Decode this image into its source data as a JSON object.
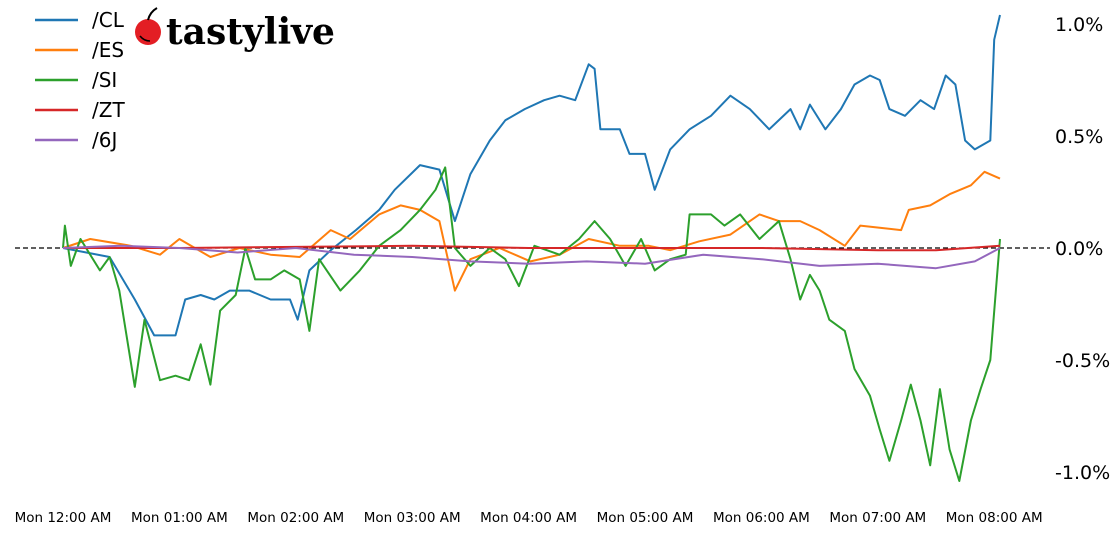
{
  "logo": {
    "text": "tastylive",
    "cherry_color": "#e31e24"
  },
  "chart_data": {
    "type": "line",
    "title": "",
    "xlabel": "",
    "ylabel": "",
    "ylim": [
      -1.1,
      1.05
    ],
    "xlim": [
      "00:00",
      "08:20"
    ],
    "grid": false,
    "legend_position": "top-left",
    "reference_line": {
      "y": 0.0,
      "style": "dashed",
      "color": "#000000"
    },
    "y_axis_side": "right",
    "yticks": [
      {
        "value": 1.0,
        "label": "1.0%"
      },
      {
        "value": 0.5,
        "label": "0.5%"
      },
      {
        "value": 0.0,
        "label": "0.0%"
      },
      {
        "value": -0.5,
        "label": "-0.5%"
      },
      {
        "value": -1.0,
        "label": "-1.0%"
      }
    ],
    "xticks": [
      {
        "time": "00:00",
        "label": "Mon 12:00 AM"
      },
      {
        "time": "01:00",
        "label": "Mon 01:00 AM"
      },
      {
        "time": "02:00",
        "label": "Mon 02:00 AM"
      },
      {
        "time": "03:00",
        "label": "Mon 03:00 AM"
      },
      {
        "time": "04:00",
        "label": "Mon 04:00 AM"
      },
      {
        "time": "05:00",
        "label": "Mon 05:00 AM"
      },
      {
        "time": "06:00",
        "label": "Mon 06:00 AM"
      },
      {
        "time": "07:00",
        "label": "Mon 07:00 AM"
      },
      {
        "time": "08:00",
        "label": "Mon 08:00 AM"
      }
    ],
    "series": [
      {
        "name": "/CL",
        "color": "#1f77b4",
        "points": [
          [
            "00:00",
            0
          ],
          [
            "00:24",
            -0.04
          ],
          [
            "00:37",
            -0.23
          ],
          [
            "00:47",
            -0.39
          ],
          [
            "00:58",
            -0.39
          ],
          [
            "01:03",
            -0.23
          ],
          [
            "01:11",
            -0.21
          ],
          [
            "01:18",
            -0.23
          ],
          [
            "01:26",
            -0.19
          ],
          [
            "01:36",
            -0.19
          ],
          [
            "01:47",
            -0.23
          ],
          [
            "01:57",
            -0.23
          ],
          [
            "02:01",
            -0.32
          ],
          [
            "02:07",
            -0.1
          ],
          [
            "02:18",
            -0.01
          ],
          [
            "02:31",
            0.08
          ],
          [
            "02:43",
            0.17
          ],
          [
            "02:51",
            0.26
          ],
          [
            "03:04",
            0.37
          ],
          [
            "03:14",
            0.35
          ],
          [
            "03:22",
            0.12
          ],
          [
            "03:30",
            0.33
          ],
          [
            "03:40",
            0.48
          ],
          [
            "03:48",
            0.57
          ],
          [
            "03:58",
            0.62
          ],
          [
            "04:08",
            0.66
          ],
          [
            "04:16",
            0.68
          ],
          [
            "04:24",
            0.66
          ],
          [
            "04:31",
            0.82
          ],
          [
            "04:34",
            0.8
          ],
          [
            "04:37",
            0.53
          ],
          [
            "04:47",
            0.53
          ],
          [
            "04:52",
            0.42
          ],
          [
            "05:00",
            0.42
          ],
          [
            "05:05",
            0.26
          ],
          [
            "05:13",
            0.44
          ],
          [
            "05:23",
            0.53
          ],
          [
            "05:34",
            0.59
          ],
          [
            "05:44",
            0.68
          ],
          [
            "05:54",
            0.62
          ],
          [
            "06:04",
            0.53
          ],
          [
            "06:15",
            0.62
          ],
          [
            "06:20",
            0.53
          ],
          [
            "06:25",
            0.64
          ],
          [
            "06:33",
            0.53
          ],
          [
            "06:41",
            0.62
          ],
          [
            "06:48",
            0.73
          ],
          [
            "06:56",
            0.77
          ],
          [
            "07:01",
            0.75
          ],
          [
            "07:06",
            0.62
          ],
          [
            "07:14",
            0.59
          ],
          [
            "07:22",
            0.66
          ],
          [
            "07:29",
            0.62
          ],
          [
            "07:35",
            0.77
          ],
          [
            "07:40",
            0.73
          ],
          [
            "07:45",
            0.48
          ],
          [
            "07:50",
            0.44
          ],
          [
            "07:58",
            0.48
          ],
          [
            "08:00",
            0.93
          ],
          [
            "08:03",
            1.04
          ]
        ]
      },
      {
        "name": "/ES",
        "color": "#ff7f0e",
        "points": [
          [
            "00:00",
            0
          ],
          [
            "00:14",
            0.04
          ],
          [
            "00:35",
            0.01
          ],
          [
            "00:50",
            -0.03
          ],
          [
            "01:00",
            0.04
          ],
          [
            "01:16",
            -0.04
          ],
          [
            "01:31",
            0
          ],
          [
            "01:47",
            -0.03
          ],
          [
            "02:02",
            -0.04
          ],
          [
            "02:18",
            0.08
          ],
          [
            "02:28",
            0.04
          ],
          [
            "02:43",
            0.15
          ],
          [
            "02:54",
            0.19
          ],
          [
            "03:04",
            0.17
          ],
          [
            "03:14",
            0.12
          ],
          [
            "03:22",
            -0.19
          ],
          [
            "03:30",
            -0.05
          ],
          [
            "03:45",
            0
          ],
          [
            "04:01",
            -0.06
          ],
          [
            "04:16",
            -0.03
          ],
          [
            "04:31",
            0.04
          ],
          [
            "04:47",
            0.01
          ],
          [
            "05:02",
            0.01
          ],
          [
            "05:13",
            -0.01
          ],
          [
            "05:28",
            0.03
          ],
          [
            "05:44",
            0.06
          ],
          [
            "05:59",
            0.15
          ],
          [
            "06:09",
            0.12
          ],
          [
            "06:20",
            0.12
          ],
          [
            "06:30",
            0.08
          ],
          [
            "06:43",
            0.01
          ],
          [
            "06:51",
            0.1
          ],
          [
            "07:01",
            0.09
          ],
          [
            "07:12",
            0.08
          ],
          [
            "07:16",
            0.17
          ],
          [
            "07:27",
            0.19
          ],
          [
            "07:37",
            0.24
          ],
          [
            "07:48",
            0.28
          ],
          [
            "07:55",
            0.34
          ],
          [
            "08:03",
            0.31
          ]
        ]
      },
      {
        "name": "/SI",
        "color": "#2ca02c",
        "points": [
          [
            "00:00",
            0
          ],
          [
            "00:01",
            0.1
          ],
          [
            "00:04",
            -0.08
          ],
          [
            "00:09",
            0.04
          ],
          [
            "00:19",
            -0.1
          ],
          [
            "00:24",
            -0.04
          ],
          [
            "00:29",
            -0.19
          ],
          [
            "00:37",
            -0.62
          ],
          [
            "00:42",
            -0.32
          ],
          [
            "00:50",
            -0.59
          ],
          [
            "00:58",
            -0.57
          ],
          [
            "01:05",
            -0.59
          ],
          [
            "01:11",
            -0.43
          ],
          [
            "01:16",
            -0.61
          ],
          [
            "01:21",
            -0.28
          ],
          [
            "01:29",
            -0.21
          ],
          [
            "01:34",
            0
          ],
          [
            "01:39",
            -0.14
          ],
          [
            "01:47",
            -0.14
          ],
          [
            "01:54",
            -0.1
          ],
          [
            "02:02",
            -0.14
          ],
          [
            "02:07",
            -0.37
          ],
          [
            "02:12",
            -0.05
          ],
          [
            "02:23",
            -0.19
          ],
          [
            "02:33",
            -0.1
          ],
          [
            "02:43",
            0.01
          ],
          [
            "02:54",
            0.08
          ],
          [
            "03:04",
            0.17
          ],
          [
            "03:12",
            0.26
          ],
          [
            "03:17",
            0.36
          ],
          [
            "03:22",
            0
          ],
          [
            "03:30",
            -0.08
          ],
          [
            "03:40",
            0
          ],
          [
            "03:48",
            -0.05
          ],
          [
            "03:55",
            -0.17
          ],
          [
            "04:03",
            0.01
          ],
          [
            "04:16",
            -0.03
          ],
          [
            "04:26",
            0.04
          ],
          [
            "04:34",
            0.12
          ],
          [
            "04:42",
            0.04
          ],
          [
            "04:50",
            -0.08
          ],
          [
            "04:58",
            0.04
          ],
          [
            "05:05",
            -0.1
          ],
          [
            "05:13",
            -0.05
          ],
          [
            "05:21",
            -0.03
          ],
          [
            "05:23",
            0.15
          ],
          [
            "05:34",
            0.15
          ],
          [
            "05:41",
            0.1
          ],
          [
            "05:49",
            0.15
          ],
          [
            "05:59",
            0.04
          ],
          [
            "06:09",
            0.12
          ],
          [
            "06:15",
            -0.05
          ],
          [
            "06:20",
            -0.23
          ],
          [
            "06:25",
            -0.12
          ],
          [
            "06:30",
            -0.19
          ],
          [
            "06:35",
            -0.32
          ],
          [
            "06:43",
            -0.37
          ],
          [
            "06:48",
            -0.54
          ],
          [
            "06:56",
            -0.66
          ],
          [
            "07:01",
            -0.81
          ],
          [
            "07:06",
            -0.95
          ],
          [
            "07:12",
            -0.77
          ],
          [
            "07:17",
            -0.61
          ],
          [
            "07:22",
            -0.77
          ],
          [
            "07:27",
            -0.97
          ],
          [
            "07:32",
            -0.63
          ],
          [
            "07:37",
            -0.9
          ],
          [
            "07:42",
            -1.04
          ],
          [
            "07:48",
            -0.77
          ],
          [
            "07:53",
            -0.63
          ],
          [
            "07:58",
            -0.5
          ],
          [
            "08:03",
            0.04
          ]
        ]
      },
      {
        "name": "/ZT",
        "color": "#d62728",
        "points": [
          [
            "00:00",
            0
          ],
          [
            "01:00",
            0
          ],
          [
            "02:00",
            0.005
          ],
          [
            "03:00",
            0.01
          ],
          [
            "04:00",
            0
          ],
          [
            "05:00",
            0
          ],
          [
            "06:00",
            0
          ],
          [
            "07:00",
            -0.01
          ],
          [
            "07:30",
            -0.01
          ],
          [
            "08:03",
            0.01
          ]
        ]
      },
      {
        "name": "/6J",
        "color": "#9467bd",
        "points": [
          [
            "00:00",
            0
          ],
          [
            "00:30",
            0.01
          ],
          [
            "01:00",
            0
          ],
          [
            "01:30",
            -0.02
          ],
          [
            "02:00",
            0
          ],
          [
            "02:30",
            -0.03
          ],
          [
            "03:00",
            -0.04
          ],
          [
            "03:30",
            -0.06
          ],
          [
            "04:00",
            -0.07
          ],
          [
            "04:30",
            -0.06
          ],
          [
            "05:00",
            -0.07
          ],
          [
            "05:30",
            -0.03
          ],
          [
            "06:00",
            -0.05
          ],
          [
            "06:30",
            -0.08
          ],
          [
            "07:00",
            -0.07
          ],
          [
            "07:30",
            -0.09
          ],
          [
            "07:50",
            -0.06
          ],
          [
            "08:03",
            0
          ]
        ]
      }
    ]
  }
}
